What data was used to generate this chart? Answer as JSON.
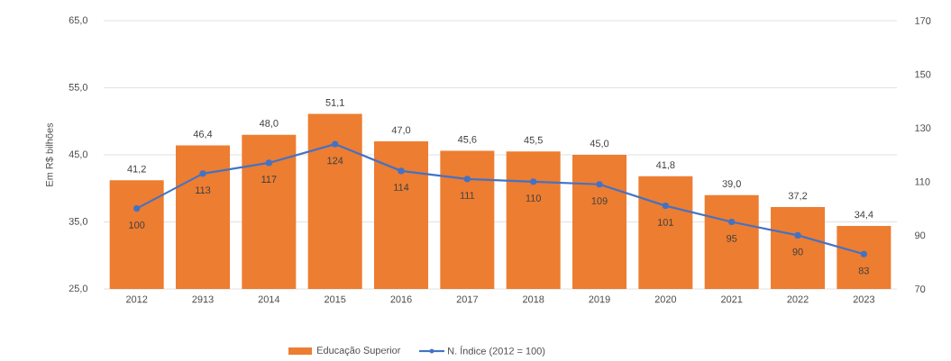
{
  "chart_data": {
    "type": "bar",
    "categories": [
      "2012",
      "2913",
      "2014",
      "2015",
      "2016",
      "2017",
      "2018",
      "2019",
      "2020",
      "2021",
      "2022",
      "2023"
    ],
    "series": [
      {
        "name": "Educação Superior",
        "color": "#ed7d31",
        "values": [
          41.2,
          46.4,
          48.0,
          51.1,
          47.0,
          45.6,
          45.5,
          45.0,
          41.8,
          39.0,
          37.2,
          34.4
        ],
        "value_labels": [
          "41,2",
          "46,4",
          "48,0",
          "51,1",
          "47,0",
          "45,6",
          "45,5",
          "45,0",
          "41,8",
          "39,0",
          "37,2",
          "34,4"
        ]
      },
      {
        "name": "N. Índice (2012 = 100)",
        "type": "line",
        "axis": "y2",
        "color": "#4472c4",
        "marker": "circle",
        "values": [
          100,
          113,
          117,
          124,
          114,
          111,
          110,
          109,
          101,
          95,
          90,
          83
        ],
        "value_labels": [
          "100",
          "113",
          "117",
          "124",
          "114",
          "111",
          "110",
          "109",
          "101",
          "95",
          "90",
          "83"
        ]
      }
    ],
    "ylabel": "Em R$ bilhões",
    "ylim": [
      25,
      65
    ],
    "yticks": [
      {
        "value": 25,
        "label": "25,0"
      },
      {
        "value": 35,
        "label": "35,0"
      },
      {
        "value": 45,
        "label": "45,0"
      },
      {
        "value": 55,
        "label": "55,0"
      },
      {
        "value": 65,
        "label": "65,0"
      }
    ],
    "y2lim": [
      70,
      170
    ],
    "y2ticks": [
      70,
      90,
      110,
      130,
      150,
      170
    ],
    "grid": "y",
    "legend": "bottom"
  }
}
